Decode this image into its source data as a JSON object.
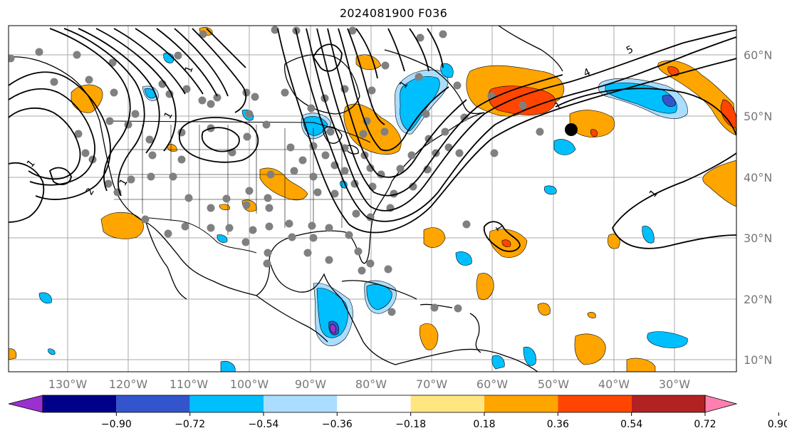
{
  "title": "2024081900 F036",
  "map": {
    "lon_labels": [
      "130°W",
      "120°W",
      "110°W",
      "100°W",
      "90°W",
      "80°W",
      "70°W",
      "60°W",
      "50°W",
      "40°W",
      "30°W"
    ],
    "lat_labels": [
      "60°N",
      "50°N",
      "40°N",
      "30°N",
      "20°N",
      "10°N"
    ],
    "contour_labels": [
      "1",
      "1",
      "2",
      "1",
      "1",
      "1",
      "1",
      "1",
      "1",
      "5",
      "4"
    ]
  },
  "colorbar": {
    "tick_labels": [
      "−0.90",
      "−0.72",
      "−0.54",
      "−0.36",
      "−0.18",
      "0.18",
      "0.36",
      "0.54",
      "0.72",
      "0.90"
    ],
    "colors": [
      "#9b30d0",
      "#000088",
      "#3355cc",
      "#00bfff",
      "#aaddff",
      "#ffffff",
      "#ffe680",
      "#ffa500",
      "#ff4500",
      "#b22222",
      "#ff80b0"
    ]
  }
}
